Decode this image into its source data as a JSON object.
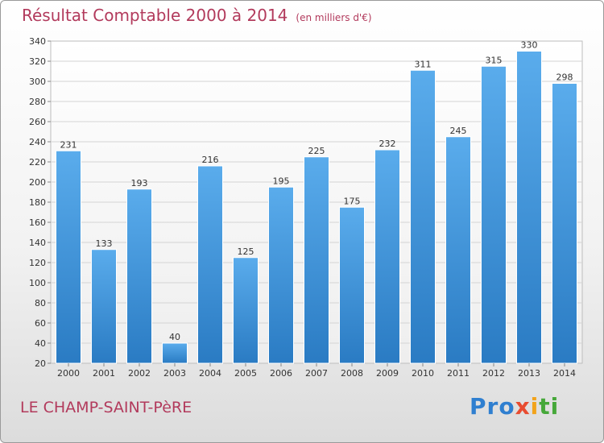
{
  "chart_data": {
    "type": "bar",
    "title": "Résultat Comptable 2000 à 2014",
    "unit": "(en milliers d'€)",
    "categories": [
      "2000",
      "2001",
      "2002",
      "2003",
      "2004",
      "2005",
      "2006",
      "2007",
      "2008",
      "2009",
      "2010",
      "2011",
      "2012",
      "2013",
      "2014"
    ],
    "values": [
      231,
      133,
      193,
      40,
      216,
      125,
      195,
      225,
      175,
      232,
      311,
      245,
      315,
      330,
      298
    ],
    "ylim": [
      20,
      340
    ],
    "ytick_step": 20,
    "xlabel": "",
    "ylabel": "",
    "grid": true,
    "bar_color": "#3f97dd"
  },
  "commune": "LE CHAMP-SAINT-PèRE",
  "logo": {
    "part1": "Pro",
    "part2": "x",
    "part3": "i",
    "part4": "ti"
  }
}
